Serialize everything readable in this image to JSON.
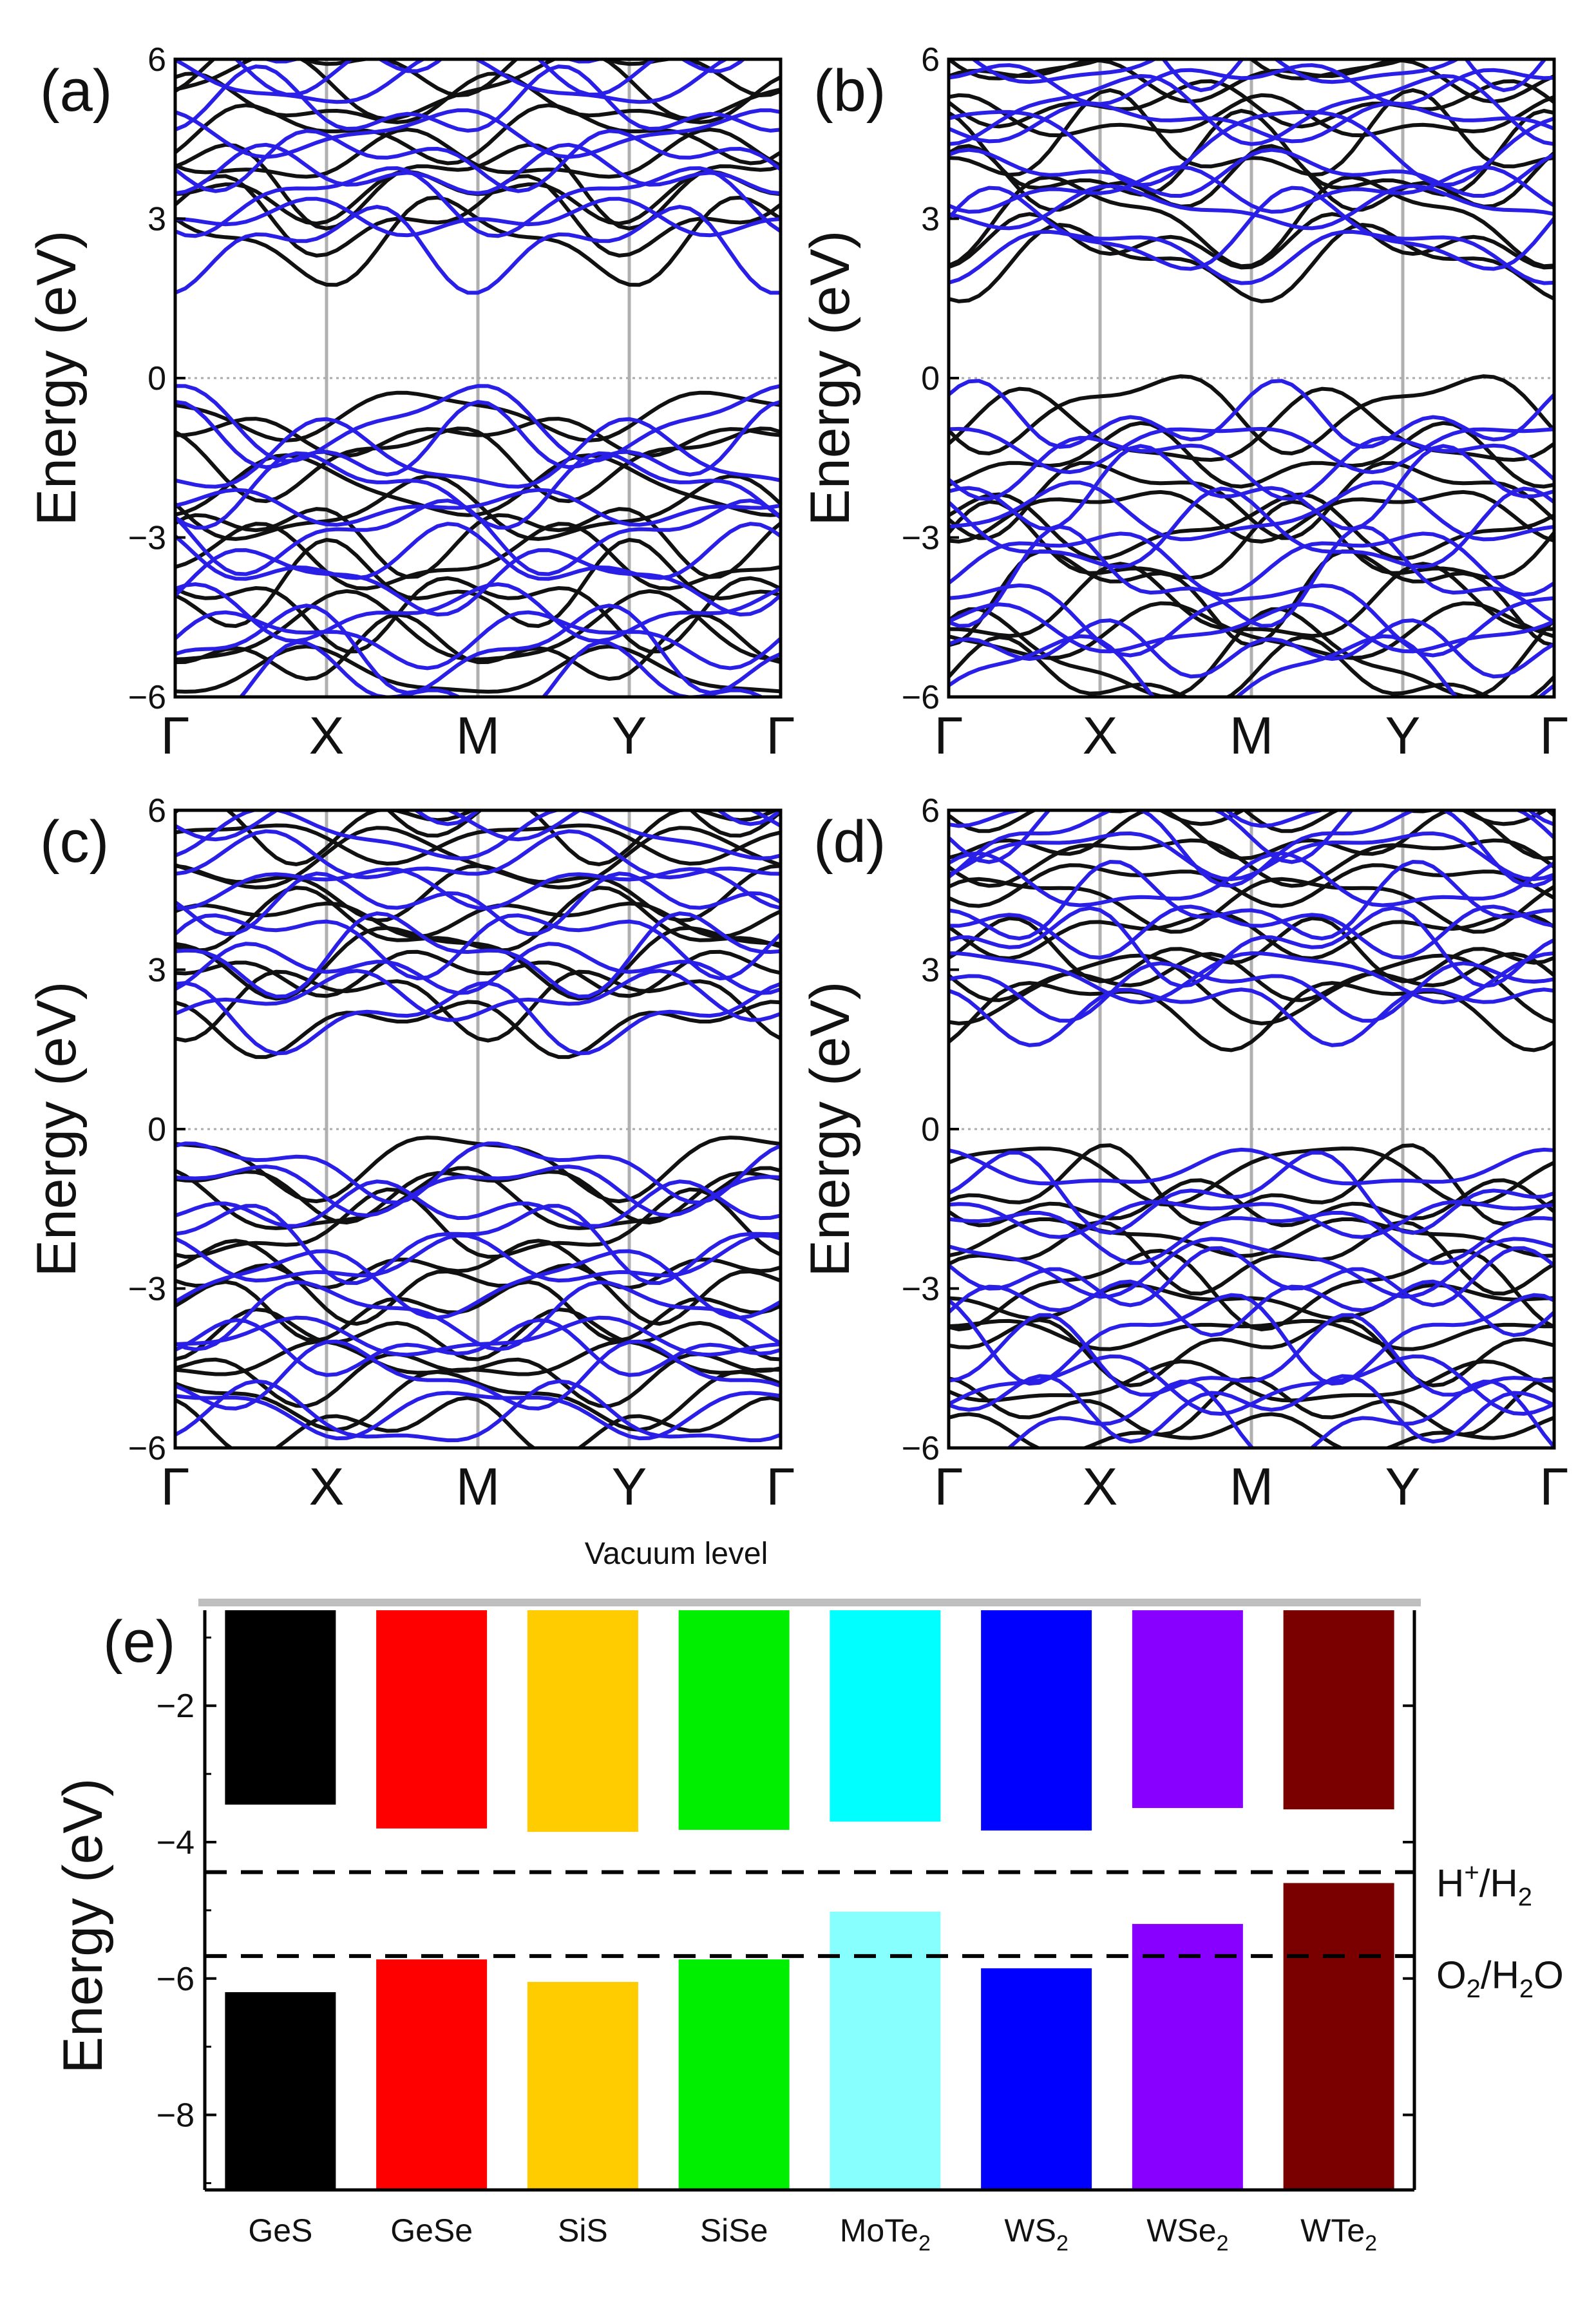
{
  "band_panels": [
    {
      "label": "(a)",
      "ylabel": "Energy (eV)",
      "yticks": [
        "6",
        "3",
        "0",
        "−3",
        "−6"
      ],
      "kpoints": [
        "Γ",
        "X",
        "M",
        "Y",
        "Γ"
      ],
      "cbm": 1.9,
      "vbm": -0.05,
      "spread": 1.0
    },
    {
      "label": "(b)",
      "ylabel": "Energy (eV)",
      "yticks": [
        "6",
        "3",
        "0",
        "−3",
        "−6"
      ],
      "kpoints": [
        "Γ",
        "X",
        "M",
        "Y",
        "Γ"
      ],
      "cbm": 1.6,
      "vbm": -0.05,
      "spread": 1.1
    },
    {
      "label": "(c)",
      "ylabel": "Energy (eV)",
      "yticks": [
        "6",
        "3",
        "0",
        "−3",
        "−6"
      ],
      "kpoints": [
        "Γ",
        "X",
        "M",
        "Y",
        "Γ"
      ],
      "cbm": 1.4,
      "vbm": 0.0,
      "spread": 0.9
    },
    {
      "label": "(d)",
      "ylabel": "Energy (eV)",
      "yticks": [
        "6",
        "3",
        "0",
        "−3",
        "−6"
      ],
      "kpoints": [
        "Γ",
        "X",
        "M",
        "Y",
        "Γ"
      ],
      "cbm": 1.5,
      "vbm": -0.02,
      "spread": 1.0
    }
  ],
  "chart_data": {
    "type": "bar",
    "label": "(e)",
    "top_annotation": "Vacuum level",
    "ylabel": "Energy (eV)",
    "ylim": [
      -9.1,
      -0.6
    ],
    "yticks": [
      -2,
      -4,
      -6,
      -8
    ],
    "ytick_labels": [
      "−2",
      "−4",
      "−6",
      "−8"
    ],
    "categories": [
      "GeS",
      "GeSe",
      "SiS",
      "SiSe",
      "MoTe",
      "WS",
      "WSe",
      "WTe"
    ],
    "category_subscripts": [
      "",
      "",
      "",
      "",
      "2",
      "2",
      "2",
      "2"
    ],
    "cbm": [
      -3.45,
      -3.8,
      -3.85,
      -3.82,
      -3.7,
      -3.83,
      -3.5,
      -3.52
    ],
    "vbm": [
      -6.2,
      -5.72,
      -6.05,
      -5.72,
      -5.02,
      -5.85,
      -5.2,
      -4.6
    ],
    "cb_colors": [
      "#000000",
      "#ff0000",
      "#ffcc00",
      "#00ee00",
      "#00ffff",
      "#0000ff",
      "#8800ff",
      "#7a0000"
    ],
    "vb_colors": [
      "#000000",
      "#ff0000",
      "#ffcc00",
      "#00ee00",
      "#88ffff",
      "#0000ff",
      "#8800ff",
      "#7a0000"
    ],
    "reference_levels": [
      {
        "name": "H",
        "sup": "+",
        "rest": "/H",
        "sub": "2",
        "value": -4.44
      },
      {
        "name": "O",
        "sub": "2",
        "rest": "/H",
        "sub2": "2",
        "tail": "O",
        "value": -5.67
      }
    ]
  }
}
